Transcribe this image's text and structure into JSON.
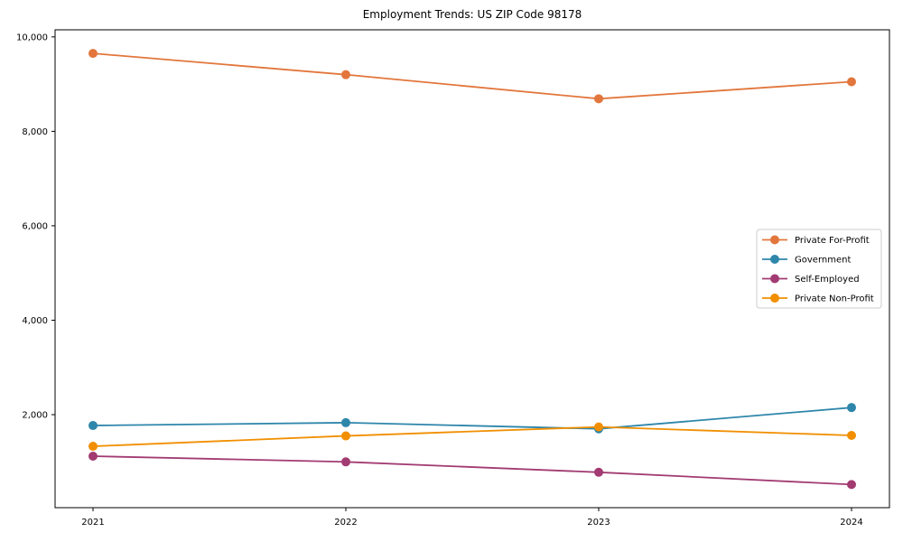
{
  "figure": {
    "background": "#ffffff",
    "spine_color": "#000000",
    "legend_border_color": "#cccccc",
    "legend_background": "#ffffff"
  },
  "chart_data": {
    "type": "line",
    "title": "Employment Trends: US ZIP Code 98178",
    "xlabel": "",
    "ylabel": "",
    "x": [
      2021,
      2022,
      2023,
      2024
    ],
    "x_tick_labels": [
      "2021",
      "2022",
      "2023",
      "2024"
    ],
    "y_ticks": [
      2000,
      4000,
      6000,
      8000,
      10000
    ],
    "y_tick_labels": [
      "2,000",
      "4,000",
      "6,000",
      "8,000",
      "10,000"
    ],
    "xlim": [
      2020.85,
      2024.15
    ],
    "ylim": [
      30,
      10150
    ],
    "grid": false,
    "legend_position": "center right",
    "series": [
      {
        "name": "Private For-Profit",
        "color": "#e2763c",
        "marker": "circle",
        "values": [
          9650,
          9200,
          8690,
          9050
        ]
      },
      {
        "name": "Government",
        "color": "#2e86ab",
        "marker": "circle",
        "values": [
          1770,
          1830,
          1700,
          2150
        ]
      },
      {
        "name": "Self-Employed",
        "color": "#a23b72",
        "marker": "circle",
        "values": [
          1120,
          1000,
          780,
          520
        ]
      },
      {
        "name": "Private Non-Profit",
        "color": "#f18f01",
        "marker": "circle",
        "values": [
          1330,
          1550,
          1740,
          1560
        ]
      }
    ]
  }
}
